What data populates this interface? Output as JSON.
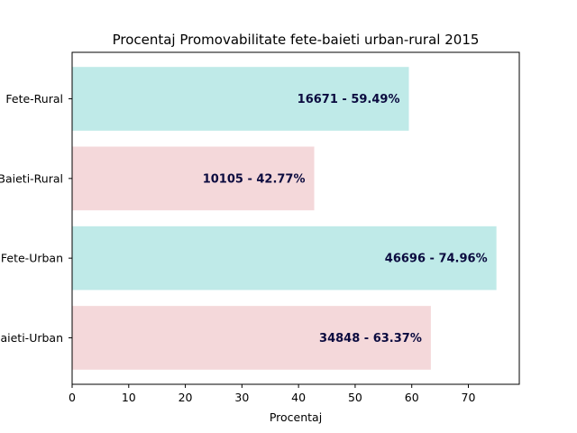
{
  "chart_data": {
    "type": "bar",
    "orientation": "horizontal",
    "title": "Procentaj Promovabilitate fete-baieti urban-rural 2015",
    "xlabel": "Procentaj",
    "ylabel": "",
    "xlim": [
      0,
      79
    ],
    "xticks": [
      0,
      10,
      20,
      30,
      40,
      50,
      60,
      70
    ],
    "grid": false,
    "categories": [
      "Baieti-Urban",
      "Fete-Urban",
      "Baieti-Rural",
      "Fete-Rural"
    ],
    "values": [
      63.37,
      74.96,
      42.77,
      59.49
    ],
    "data_labels": [
      "34848 - 63.37%",
      "46696 - 74.96%",
      "10105 - 42.77%",
      "16671 - 59.49%"
    ],
    "colors": [
      "#f4d8da",
      "#bfeae8",
      "#f4d8da",
      "#bfeae8"
    ]
  }
}
